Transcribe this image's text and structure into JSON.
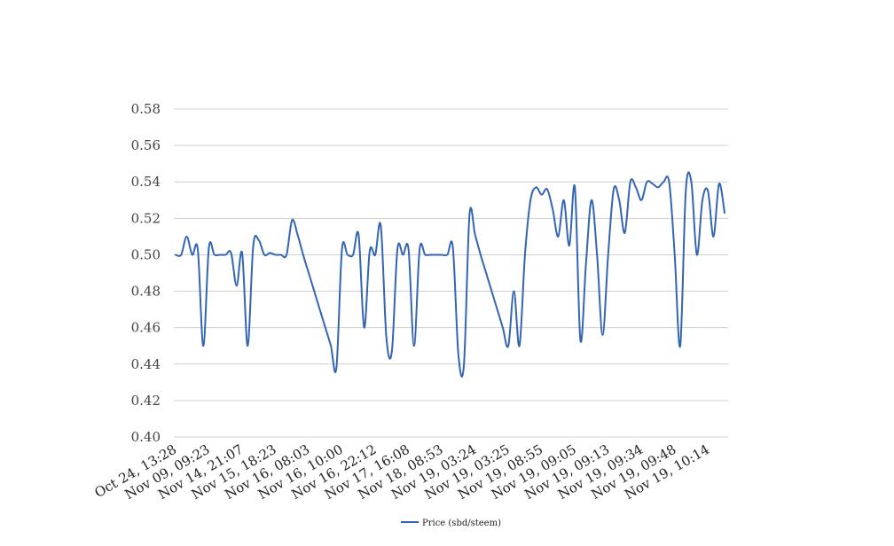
{
  "chart_data": {
    "type": "line",
    "ylim": [
      0.4,
      0.58
    ],
    "yticks": [
      "0.40",
      "0.42",
      "0.44",
      "0.46",
      "0.48",
      "0.50",
      "0.52",
      "0.54",
      "0.56",
      "0.58"
    ],
    "grid": true,
    "legend_position": "bottom-center",
    "x_tick_labels": [
      "Oct 24, 13:28",
      "Nov 09, 09:23",
      "Nov 14, 21:07",
      "Nov 15, 18:23",
      "Nov 16, 08:03",
      "Nov 16, 10:00",
      "Nov 16, 22:12",
      "Nov 17, 16:08",
      "Nov 18, 08:53",
      "Nov 19, 03:24",
      "Nov 19, 03:25",
      "Nov 19, 08:55",
      "Nov 19, 09:05",
      "Nov 19, 09:13",
      "Nov 19, 09:34",
      "Nov 19, 09:48",
      "Nov 19, 10:14"
    ],
    "series": [
      {
        "name": "Price (sbd/steem)",
        "color": "#3465b4",
        "values": [
          0.5,
          0.5,
          0.51,
          0.5,
          0.503,
          0.45,
          0.504,
          0.5,
          0.5,
          0.5,
          0.501,
          0.483,
          0.501,
          0.45,
          0.505,
          0.508,
          0.5,
          0.501,
          0.5,
          0.5,
          0.5,
          0.519,
          0.511,
          0.5,
          0.49,
          0.48,
          0.47,
          0.46,
          0.45,
          0.438,
          0.503,
          0.5,
          0.5,
          0.511,
          0.46,
          0.502,
          0.5,
          0.516,
          0.455,
          0.447,
          0.503,
          0.5,
          0.503,
          0.45,
          0.503,
          0.5,
          0.5,
          0.5,
          0.5,
          0.5,
          0.504,
          0.445,
          0.44,
          0.522,
          0.511,
          0.5,
          0.49,
          0.48,
          0.47,
          0.46,
          0.45,
          0.48,
          0.45,
          0.5,
          0.53,
          0.537,
          0.533,
          0.536,
          0.525,
          0.51,
          0.53,
          0.505,
          0.537,
          0.453,
          0.495,
          0.53,
          0.5,
          0.456,
          0.5,
          0.536,
          0.53,
          0.512,
          0.54,
          0.537,
          0.53,
          0.54,
          0.539,
          0.537,
          0.54,
          0.54,
          0.5,
          0.45,
          0.535,
          0.54,
          0.5,
          0.53,
          0.535,
          0.51,
          0.539,
          0.523
        ]
      }
    ]
  }
}
